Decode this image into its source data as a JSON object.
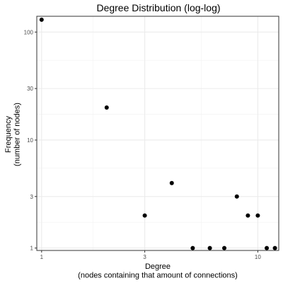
{
  "chart_data": {
    "type": "scatter",
    "title": "Degree Distribution (log-log)",
    "xlabel": "Degree\n(nodes containing that amount of connections)",
    "ylabel": "Frequency\n(number of nodes)",
    "x_scale": "log10",
    "y_scale": "log10",
    "xlim": [
      0.95,
      12.5
    ],
    "ylim": [
      0.95,
      140
    ],
    "x_ticks": [
      1,
      3,
      10
    ],
    "y_ticks": [
      1,
      3,
      10,
      30,
      100
    ],
    "grid": true,
    "points": [
      {
        "x": 1,
        "y": 130
      },
      {
        "x": 2,
        "y": 20
      },
      {
        "x": 3,
        "y": 2
      },
      {
        "x": 4,
        "y": 4
      },
      {
        "x": 5,
        "y": 1
      },
      {
        "x": 6,
        "y": 1
      },
      {
        "x": 7,
        "y": 1
      },
      {
        "x": 8,
        "y": 3
      },
      {
        "x": 9,
        "y": 2
      },
      {
        "x": 10,
        "y": 2
      },
      {
        "x": 11,
        "y": 1
      },
      {
        "x": 12,
        "y": 1
      }
    ]
  }
}
